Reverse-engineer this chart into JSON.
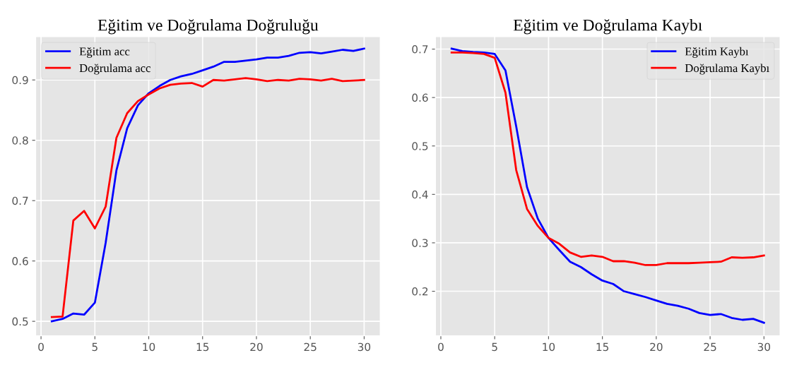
{
  "chart_data": [
    {
      "type": "line",
      "title": "Eğitim ve Doğrulama Doğruluğu",
      "x": [
        1,
        2,
        3,
        4,
        5,
        6,
        7,
        8,
        9,
        10,
        11,
        12,
        13,
        14,
        15,
        16,
        17,
        18,
        19,
        20,
        21,
        22,
        23,
        24,
        25,
        26,
        27,
        28,
        29,
        30
      ],
      "series": [
        {
          "name": "Eğitim acc",
          "color": "#0000ff",
          "values": [
            0.5,
            0.504,
            0.513,
            0.511,
            0.531,
            0.63,
            0.75,
            0.82,
            0.858,
            0.878,
            0.89,
            0.9,
            0.906,
            0.91,
            0.916,
            0.922,
            0.93,
            0.93,
            0.932,
            0.934,
            0.937,
            0.937,
            0.94,
            0.945,
            0.946,
            0.944,
            0.947,
            0.95,
            0.948,
            0.952
          ]
        },
        {
          "name": "Doğrulama acc",
          "color": "#ff0000",
          "values": [
            0.507,
            0.508,
            0.667,
            0.683,
            0.654,
            0.69,
            0.804,
            0.845,
            0.865,
            0.876,
            0.886,
            0.892,
            0.894,
            0.895,
            0.889,
            0.9,
            0.899,
            0.901,
            0.903,
            0.901,
            0.898,
            0.9,
            0.899,
            0.902,
            0.901,
            0.899,
            0.902,
            0.898,
            0.899,
            0.9
          ]
        }
      ],
      "xlim": [
        -0.5,
        31.5
      ],
      "xticks": [
        0,
        5,
        10,
        15,
        20,
        25,
        30
      ],
      "ylim": [
        0.476,
        0.972
      ],
      "yticks": [
        0.5,
        0.6,
        0.7,
        0.8,
        0.9
      ],
      "grid": true,
      "legend": "top left"
    },
    {
      "type": "line",
      "title": "Eğitim ve Doğrulama Kaybı",
      "x": [
        1,
        2,
        3,
        4,
        5,
        6,
        7,
        8,
        9,
        10,
        11,
        12,
        13,
        14,
        15,
        16,
        17,
        18,
        19,
        20,
        21,
        22,
        23,
        24,
        25,
        26,
        27,
        28,
        29,
        30
      ],
      "series": [
        {
          "name": "Eğitim Kaybı",
          "color": "#0000ff",
          "values": [
            0.701,
            0.696,
            0.694,
            0.693,
            0.69,
            0.656,
            0.54,
            0.415,
            0.35,
            0.31,
            0.285,
            0.261,
            0.25,
            0.235,
            0.222,
            0.215,
            0.2,
            0.194,
            0.188,
            0.181,
            0.174,
            0.17,
            0.164,
            0.155,
            0.151,
            0.153,
            0.145,
            0.141,
            0.143,
            0.135
          ]
        },
        {
          "name": "Doğrulama Kaybı",
          "color": "#ff0000",
          "values": [
            0.693,
            0.693,
            0.692,
            0.69,
            0.682,
            0.61,
            0.45,
            0.37,
            0.335,
            0.31,
            0.298,
            0.28,
            0.271,
            0.274,
            0.271,
            0.262,
            0.262,
            0.259,
            0.254,
            0.254,
            0.258,
            0.258,
            0.258,
            0.259,
            0.26,
            0.261,
            0.27,
            0.269,
            0.27,
            0.274
          ]
        }
      ],
      "xlim": [
        -0.5,
        31.5
      ],
      "xticks": [
        0,
        5,
        10,
        15,
        20,
        25,
        30
      ],
      "ylim": [
        0.108,
        0.726
      ],
      "yticks": [
        0.2,
        0.3,
        0.4,
        0.5,
        0.6,
        0.7
      ],
      "grid": true,
      "legend": "top right"
    }
  ]
}
